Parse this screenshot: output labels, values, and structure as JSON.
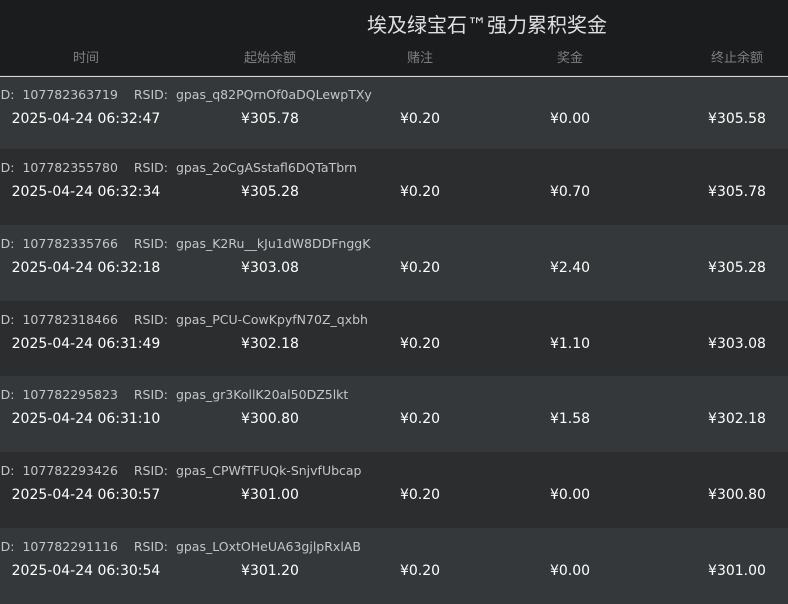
{
  "title": "埃及绿宝石™强力累积奖金",
  "columns": [
    "时间",
    "起始余额",
    "赌注",
    "奖金",
    "终止余额"
  ],
  "id_label": "ID:",
  "rsid_label": "RSID:",
  "colors": {
    "header_bg": "#1b1c1e",
    "row_light": "#35383a",
    "row_dark": "#2b2d2f",
    "selected_border": "#d8d8d8"
  },
  "rows": [
    {
      "id": "107782363719",
      "rsid": "gpas_q82PQrnOf0aDQLewpTXy",
      "time": "2025-04-24 06:32:47",
      "start": "¥305.78",
      "bet": "¥0.20",
      "win": "¥0.00",
      "end": "¥305.58",
      "selected": true
    },
    {
      "id": "107782355780",
      "rsid": "gpas_2oCgASstafl6DQTaTbrn",
      "time": "2025-04-24 06:32:34",
      "start": "¥305.28",
      "bet": "¥0.20",
      "win": "¥0.70",
      "end": "¥305.78"
    },
    {
      "id": "107782335766",
      "rsid": "gpas_K2Ru__kJu1dW8DDFnggK",
      "time": "2025-04-24 06:32:18",
      "start": "¥303.08",
      "bet": "¥0.20",
      "win": "¥2.40",
      "end": "¥305.28"
    },
    {
      "id": "107782318466",
      "rsid": "gpas_PCU-CowKpyfN70Z_qxbh",
      "time": "2025-04-24 06:31:49",
      "start": "¥302.18",
      "bet": "¥0.20",
      "win": "¥1.10",
      "end": "¥303.08"
    },
    {
      "id": "107782295823",
      "rsid": "gpas_gr3KollK20al50DZ5lkt",
      "time": "2025-04-24 06:31:10",
      "start": "¥300.80",
      "bet": "¥0.20",
      "win": "¥1.58",
      "end": "¥302.18"
    },
    {
      "id": "107782293426",
      "rsid": "gpas_CPWfTFUQk-SnjvfUbcap",
      "time": "2025-04-24 06:30:57",
      "start": "¥301.00",
      "bet": "¥0.20",
      "win": "¥0.00",
      "end": "¥300.80"
    },
    {
      "id": "107782291116",
      "rsid": "gpas_LOxtOHeUA63gjlpRxlAB",
      "time": "2025-04-24 06:30:54",
      "start": "¥301.20",
      "bet": "¥0.20",
      "win": "¥0.00",
      "end": "¥301.00"
    }
  ]
}
